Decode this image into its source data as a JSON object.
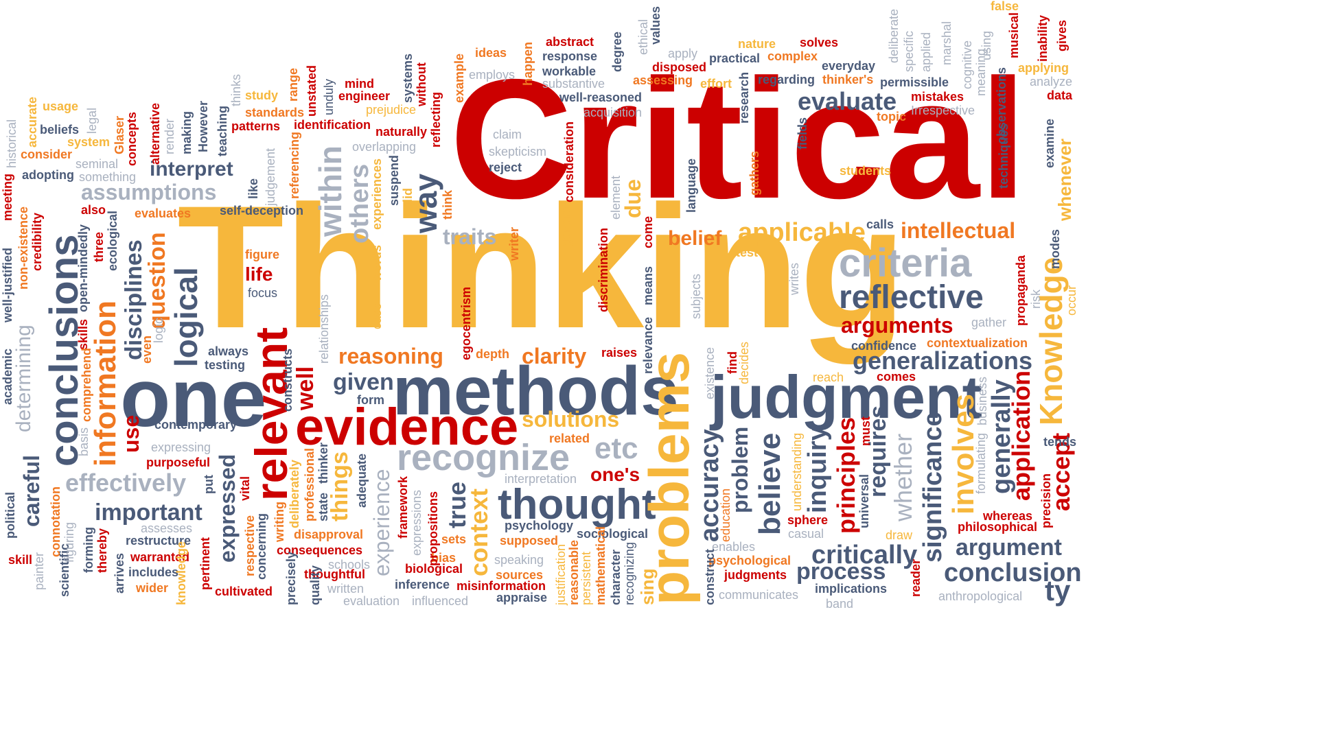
{
  "palette": {
    "red": "#cc0000",
    "orange": "#f07822",
    "yellow": "#f6b73c",
    "navy": "#4a5a78",
    "gray": "#a9b1bf"
  },
  "words": [
    {
      "text": "Critical",
      "color": "red"
    },
    {
      "text": "Thinking",
      "color": "yellow"
    },
    {
      "text": "one",
      "color": "navy"
    },
    {
      "text": "methods",
      "color": "navy"
    },
    {
      "text": "evidence",
      "color": "red"
    },
    {
      "text": "judgment",
      "color": "navy"
    },
    {
      "text": "recognize",
      "color": "gray"
    },
    {
      "text": "thought",
      "color": "navy"
    },
    {
      "text": "conclusions",
      "color": "navy"
    },
    {
      "text": "relevant",
      "color": "red"
    },
    {
      "text": "information",
      "color": "orange"
    },
    {
      "text": "problems",
      "color": "yellow"
    },
    {
      "text": "Knowledge",
      "color": "yellow"
    },
    {
      "text": "criteria",
      "color": "gray"
    },
    {
      "text": "reflective",
      "color": "navy"
    },
    {
      "text": "arguments",
      "color": "red"
    },
    {
      "text": "generalizations",
      "color": "navy"
    },
    {
      "text": "evaluate",
      "color": "navy"
    },
    {
      "text": "intellectual",
      "color": "orange"
    },
    {
      "text": "applicable",
      "color": "yellow"
    },
    {
      "text": "belief",
      "color": "orange"
    },
    {
      "text": "interpret",
      "color": "navy"
    },
    {
      "text": "assumptions",
      "color": "gray"
    },
    {
      "text": "reasoning",
      "color": "orange"
    },
    {
      "text": "clarity",
      "color": "orange"
    },
    {
      "text": "solutions",
      "color": "yellow"
    },
    {
      "text": "etc",
      "color": "gray"
    },
    {
      "text": "one's",
      "color": "red"
    },
    {
      "text": "important",
      "color": "navy"
    },
    {
      "text": "effectively",
      "color": "gray"
    },
    {
      "text": "critically",
      "color": "navy"
    },
    {
      "text": "process",
      "color": "navy"
    },
    {
      "text": "argument",
      "color": "navy"
    },
    {
      "text": "conclusion",
      "color": "navy"
    },
    {
      "text": "traits",
      "color": "gray"
    },
    {
      "text": "given",
      "color": "navy"
    },
    {
      "text": "within",
      "color": "gray"
    },
    {
      "text": "others",
      "color": "gray"
    },
    {
      "text": "way",
      "color": "navy"
    },
    {
      "text": "logical",
      "color": "navy"
    },
    {
      "text": "disciplines",
      "color": "navy"
    },
    {
      "text": "question",
      "color": "orange"
    },
    {
      "text": "use",
      "color": "red"
    },
    {
      "text": "careful",
      "color": "navy"
    },
    {
      "text": "determining",
      "color": "gray"
    },
    {
      "text": "expressed",
      "color": "navy"
    },
    {
      "text": "well",
      "color": "red"
    },
    {
      "text": "things",
      "color": "yellow"
    },
    {
      "text": "experience",
      "color": "gray"
    },
    {
      "text": "true",
      "color": "navy"
    },
    {
      "text": "context",
      "color": "yellow"
    },
    {
      "text": "accuracy",
      "color": "navy"
    },
    {
      "text": "problem",
      "color": "navy"
    },
    {
      "text": "believe",
      "color": "navy"
    },
    {
      "text": "inquiry",
      "color": "navy"
    },
    {
      "text": "principles",
      "color": "red"
    },
    {
      "text": "requires",
      "color": "navy"
    },
    {
      "text": "whether",
      "color": "gray"
    },
    {
      "text": "significance",
      "color": "navy"
    },
    {
      "text": "involves",
      "color": "yellow"
    },
    {
      "text": "generally",
      "color": "navy"
    },
    {
      "text": "application",
      "color": "red"
    },
    {
      "text": "accept",
      "color": "red"
    },
    {
      "text": "due",
      "color": "yellow"
    },
    {
      "text": "abstract",
      "color": "red"
    },
    {
      "text": "response",
      "color": "navy"
    },
    {
      "text": "workable",
      "color": "navy"
    },
    {
      "text": "substantive",
      "color": "gray"
    },
    {
      "text": "well-reasoned",
      "color": "navy"
    },
    {
      "text": "acquisition",
      "color": "gray"
    },
    {
      "text": "claim",
      "color": "gray"
    },
    {
      "text": "skepticism",
      "color": "gray"
    },
    {
      "text": "reject",
      "color": "navy"
    },
    {
      "text": "ideas",
      "color": "orange"
    },
    {
      "text": "employs",
      "color": "gray"
    },
    {
      "text": "mind",
      "color": "red"
    },
    {
      "text": "engineer",
      "color": "red"
    },
    {
      "text": "prejudice",
      "color": "yellow"
    },
    {
      "text": "naturally",
      "color": "red"
    },
    {
      "text": "overlapping",
      "color": "gray"
    },
    {
      "text": "identification",
      "color": "red"
    },
    {
      "text": "standards",
      "color": "orange"
    },
    {
      "text": "patterns",
      "color": "red"
    },
    {
      "text": "study",
      "color": "yellow"
    },
    {
      "text": "usage",
      "color": "yellow"
    },
    {
      "text": "beliefs",
      "color": "navy"
    },
    {
      "text": "system",
      "color": "yellow"
    },
    {
      "text": "consider",
      "color": "orange"
    },
    {
      "text": "seminal",
      "color": "gray"
    },
    {
      "text": "something",
      "color": "gray"
    },
    {
      "text": "adopting",
      "color": "navy"
    },
    {
      "text": "also",
      "color": "red"
    },
    {
      "text": "evaluates",
      "color": "orange"
    },
    {
      "text": "self-deception",
      "color": "navy"
    },
    {
      "text": "nature",
      "color": "yellow"
    },
    {
      "text": "solves",
      "color": "red"
    },
    {
      "text": "apply",
      "color": "gray"
    },
    {
      "text": "complex",
      "color": "orange"
    },
    {
      "text": "practical",
      "color": "navy"
    },
    {
      "text": "disposed",
      "color": "red"
    },
    {
      "text": "everyday",
      "color": "navy"
    },
    {
      "text": "assessing",
      "color": "orange"
    },
    {
      "text": "effort",
      "color": "yellow"
    },
    {
      "text": "regarding",
      "color": "navy"
    },
    {
      "text": "thinker's",
      "color": "orange"
    },
    {
      "text": "permissible",
      "color": "navy"
    },
    {
      "text": "applying",
      "color": "yellow"
    },
    {
      "text": "analyze",
      "color": "gray"
    },
    {
      "text": "mistakes",
      "color": "red"
    },
    {
      "text": "Irrespective",
      "color": "gray"
    },
    {
      "text": "data",
      "color": "red"
    },
    {
      "text": "topic",
      "color": "orange"
    },
    {
      "text": "students",
      "color": "yellow"
    },
    {
      "text": "calls",
      "color": "navy"
    },
    {
      "text": "test",
      "color": "yellow"
    },
    {
      "text": "gather",
      "color": "gray"
    },
    {
      "text": "contextualization",
      "color": "orange"
    },
    {
      "text": "confidence",
      "color": "navy"
    },
    {
      "text": "comes",
      "color": "red"
    },
    {
      "text": "reach",
      "color": "yellow"
    },
    {
      "text": "tends",
      "color": "navy"
    },
    {
      "text": "figure",
      "color": "orange"
    },
    {
      "text": "life",
      "color": "red"
    },
    {
      "text": "focus",
      "color": "navy"
    },
    {
      "text": "always",
      "color": "navy"
    },
    {
      "text": "testing",
      "color": "navy"
    },
    {
      "text": "depth",
      "color": "orange"
    },
    {
      "text": "raises",
      "color": "red"
    },
    {
      "text": "form",
      "color": "navy"
    },
    {
      "text": "contemporary",
      "color": "navy"
    },
    {
      "text": "expressing",
      "color": "gray"
    },
    {
      "text": "purposeful",
      "color": "red"
    },
    {
      "text": "related",
      "color": "orange"
    },
    {
      "text": "interpretation",
      "color": "gray"
    },
    {
      "text": "psychology",
      "color": "navy"
    },
    {
      "text": "sociological",
      "color": "navy"
    },
    {
      "text": "supposed",
      "color": "orange"
    },
    {
      "text": "speaking",
      "color": "gray"
    },
    {
      "text": "sources",
      "color": "orange"
    },
    {
      "text": "appraise",
      "color": "navy"
    },
    {
      "text": "misinformation",
      "color": "red"
    },
    {
      "text": "inference",
      "color": "navy"
    },
    {
      "text": "biological",
      "color": "red"
    },
    {
      "text": "bias",
      "color": "orange"
    },
    {
      "text": "sets",
      "color": "orange"
    },
    {
      "text": "disapproval",
      "color": "orange"
    },
    {
      "text": "consequences",
      "color": "red"
    },
    {
      "text": "thoughtful",
      "color": "red"
    },
    {
      "text": "schools",
      "color": "gray"
    },
    {
      "text": "written",
      "color": "gray"
    },
    {
      "text": "evaluation",
      "color": "gray"
    },
    {
      "text": "influenced",
      "color": "gray"
    },
    {
      "text": "assesses",
      "color": "gray"
    },
    {
      "text": "restructure",
      "color": "navy"
    },
    {
      "text": "warranted",
      "color": "red"
    },
    {
      "text": "includes",
      "color": "navy"
    },
    {
      "text": "wider",
      "color": "orange"
    },
    {
      "text": "cultivated",
      "color": "red"
    },
    {
      "text": "skill",
      "color": "red"
    },
    {
      "text": "sphere",
      "color": "red"
    },
    {
      "text": "casual",
      "color": "gray"
    },
    {
      "text": "draw",
      "color": "yellow"
    },
    {
      "text": "enables",
      "color": "gray"
    },
    {
      "text": "psychological",
      "color": "orange"
    },
    {
      "text": "judgments",
      "color": "red"
    },
    {
      "text": "implications",
      "color": "navy"
    },
    {
      "text": "communicates",
      "color": "gray"
    },
    {
      "text": "anthropological",
      "color": "gray"
    },
    {
      "text": "whereas",
      "color": "red"
    },
    {
      "text": "philosophical",
      "color": "red"
    },
    {
      "text": "meeting",
      "color": "red"
    },
    {
      "text": "well-justified",
      "color": "navy"
    },
    {
      "text": "non-existence",
      "color": "orange"
    },
    {
      "text": "credibility",
      "color": "red"
    },
    {
      "text": "open-mindedly",
      "color": "navy"
    },
    {
      "text": "three",
      "color": "red"
    },
    {
      "text": "ecological",
      "color": "navy"
    },
    {
      "text": "skills",
      "color": "red"
    },
    {
      "text": "comprehend",
      "color": "orange"
    },
    {
      "text": "basis",
      "color": "gray"
    },
    {
      "text": "academic",
      "color": "navy"
    },
    {
      "text": "political",
      "color": "navy"
    },
    {
      "text": "scientific",
      "color": "navy"
    },
    {
      "text": "painter",
      "color": "gray"
    },
    {
      "text": "figuring",
      "color": "gray"
    },
    {
      "text": "forming",
      "color": "navy"
    },
    {
      "text": "thereby",
      "color": "red"
    },
    {
      "text": "arrives",
      "color": "navy"
    },
    {
      "text": "connotation",
      "color": "orange"
    },
    {
      "text": "historical",
      "color": "gray"
    },
    {
      "text": "accurate",
      "color": "yellow"
    },
    {
      "text": "legal",
      "color": "gray"
    },
    {
      "text": "Glaser",
      "color": "orange"
    },
    {
      "text": "concepts",
      "color": "red"
    },
    {
      "text": "alternative",
      "color": "red"
    },
    {
      "text": "render",
      "color": "gray"
    },
    {
      "text": "making",
      "color": "navy"
    },
    {
      "text": "However",
      "color": "navy"
    },
    {
      "text": "teaching",
      "color": "navy"
    },
    {
      "text": "thinks",
      "color": "gray"
    },
    {
      "text": "range",
      "color": "orange"
    },
    {
      "text": "unstated",
      "color": "red"
    },
    {
      "text": "unduly",
      "color": "navy"
    },
    {
      "text": "systems",
      "color": "navy"
    },
    {
      "text": "without",
      "color": "red"
    },
    {
      "text": "reflecting",
      "color": "red"
    },
    {
      "text": "example",
      "color": "orange"
    },
    {
      "text": "happen",
      "color": "orange"
    },
    {
      "text": "degree",
      "color": "navy"
    },
    {
      "text": "ethical",
      "color": "gray"
    },
    {
      "text": "values",
      "color": "navy"
    },
    {
      "text": "research",
      "color": "navy"
    },
    {
      "text": "fields",
      "color": "navy"
    },
    {
      "text": "deliberate",
      "color": "gray"
    },
    {
      "text": "specific",
      "color": "gray"
    },
    {
      "text": "applied",
      "color": "gray"
    },
    {
      "text": "marshal",
      "color": "gray"
    },
    {
      "text": "cognitive",
      "color": "gray"
    },
    {
      "text": "meaning",
      "color": "gray"
    },
    {
      "text": "using",
      "color": "gray"
    },
    {
      "text": "false",
      "color": "yellow"
    },
    {
      "text": "musical",
      "color": "red"
    },
    {
      "text": "inability",
      "color": "red"
    },
    {
      "text": "gives",
      "color": "red"
    },
    {
      "text": "observations",
      "color": "navy"
    },
    {
      "text": "techniques",
      "color": "navy"
    },
    {
      "text": "examine",
      "color": "navy"
    },
    {
      "text": "whenever",
      "color": "yellow"
    },
    {
      "text": "modes",
      "color": "navy"
    },
    {
      "text": "risk",
      "color": "gray"
    },
    {
      "text": "propaganda",
      "color": "red"
    },
    {
      "text": "occur",
      "color": "yellow"
    },
    {
      "text": "precision",
      "color": "red"
    },
    {
      "text": "judgement",
      "color": "gray"
    },
    {
      "text": "like",
      "color": "navy"
    },
    {
      "text": "referencing",
      "color": "orange"
    },
    {
      "text": "suspend",
      "color": "navy"
    },
    {
      "text": "valid",
      "color": "yellow"
    },
    {
      "text": "experiences",
      "color": "yellow"
    },
    {
      "text": "think",
      "color": "orange"
    },
    {
      "text": "words",
      "color": "yellow"
    },
    {
      "text": "case",
      "color": "yellow"
    },
    {
      "text": "relationships",
      "color": "gray"
    },
    {
      "text": "egocentrism",
      "color": "red"
    },
    {
      "text": "writer",
      "color": "orange"
    },
    {
      "text": "general",
      "color": "yellow"
    },
    {
      "text": "consideration",
      "color": "red"
    },
    {
      "text": "discrimination",
      "color": "red"
    },
    {
      "text": "element",
      "color": "gray"
    },
    {
      "text": "come",
      "color": "red"
    },
    {
      "text": "means",
      "color": "navy"
    },
    {
      "text": "relevance",
      "color": "navy"
    },
    {
      "text": "language",
      "color": "navy"
    },
    {
      "text": "gathers",
      "color": "orange"
    },
    {
      "text": "subjects",
      "color": "gray"
    },
    {
      "text": "writes",
      "color": "gray"
    },
    {
      "text": "existence",
      "color": "gray"
    },
    {
      "text": "find",
      "color": "red"
    },
    {
      "text": "decides",
      "color": "yellow"
    },
    {
      "text": "constructs",
      "color": "navy"
    },
    {
      "text": "even",
      "color": "orange"
    },
    {
      "text": "logic",
      "color": "gray"
    },
    {
      "text": "put",
      "color": "navy"
    },
    {
      "text": "vital",
      "color": "red"
    },
    {
      "text": "pertinent",
      "color": "red"
    },
    {
      "text": "respective",
      "color": "orange"
    },
    {
      "text": "concerning",
      "color": "navy"
    },
    {
      "text": "writing",
      "color": "orange"
    },
    {
      "text": "deliberately",
      "color": "yellow"
    },
    {
      "text": "professional",
      "color": "orange"
    },
    {
      "text": "state",
      "color": "navy"
    },
    {
      "text": "thinker",
      "color": "navy"
    },
    {
      "text": "adequate",
      "color": "navy"
    },
    {
      "text": "framework",
      "color": "red"
    },
    {
      "text": "expressions",
      "color": "gray"
    },
    {
      "text": "propositions",
      "color": "red"
    },
    {
      "text": "justification",
      "color": "yellow"
    },
    {
      "text": "reasonable",
      "color": "orange"
    },
    {
      "text": "persistent",
      "color": "yellow"
    },
    {
      "text": "mathematical",
      "color": "orange"
    },
    {
      "text": "character",
      "color": "navy"
    },
    {
      "text": "recognizing",
      "color": "navy"
    },
    {
      "text": "education",
      "color": "orange"
    },
    {
      "text": "universal",
      "color": "navy"
    },
    {
      "text": "must",
      "color": "red"
    },
    {
      "text": "understanding",
      "color": "yellow"
    },
    {
      "text": "formulating",
      "color": "gray"
    },
    {
      "text": "business",
      "color": "gray"
    },
    {
      "text": "reader",
      "color": "red"
    },
    {
      "text": "band",
      "color": "gray"
    },
    {
      "text": "construct",
      "color": "navy"
    },
    {
      "text": "precisely",
      "color": "navy"
    },
    {
      "text": "quality",
      "color": "navy"
    },
    {
      "text": "knowledge",
      "color": "yellow"
    },
    {
      "text": "sing",
      "color": "yellow"
    },
    {
      "text": "ty",
      "color": "navy"
    }
  ]
}
